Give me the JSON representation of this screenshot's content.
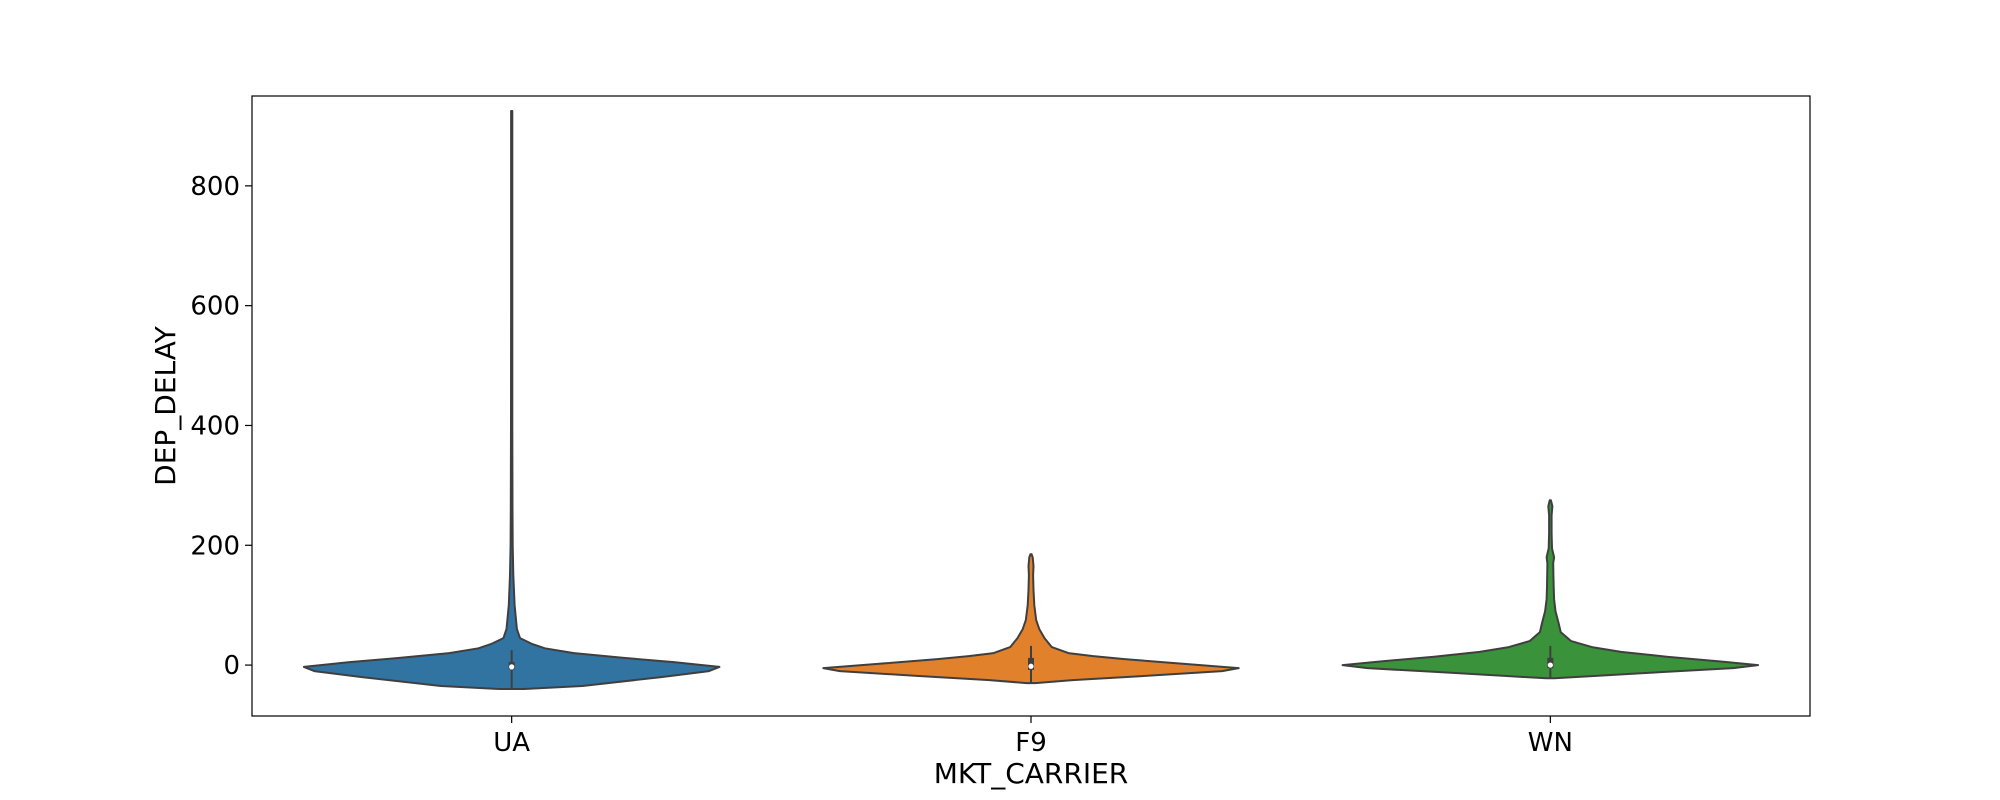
{
  "chart_data": {
    "type": "violin",
    "title": "",
    "xlabel": "MKT_CARRIER",
    "ylabel": "DEP_DELAY",
    "ylim": [
      -85,
      950
    ],
    "yticks": [
      0,
      200,
      400,
      600,
      800
    ],
    "grid": false,
    "legend": "none",
    "categories": [
      "UA",
      "F9",
      "WN"
    ],
    "series": [
      {
        "category": "UA",
        "color": "#3274a1",
        "min": -40,
        "max": 925,
        "q1": -7,
        "median": -3,
        "q3": 5,
        "density": [
          [
            -40,
            0.06
          ],
          [
            -35,
            0.34
          ],
          [
            -20,
            0.72
          ],
          [
            -10,
            0.95
          ],
          [
            -3,
            1.0
          ],
          [
            5,
            0.78
          ],
          [
            12,
            0.54
          ],
          [
            20,
            0.3
          ],
          [
            28,
            0.16
          ],
          [
            35,
            0.1
          ],
          [
            45,
            0.04
          ],
          [
            60,
            0.025
          ],
          [
            100,
            0.014
          ],
          [
            150,
            0.008
          ],
          [
            200,
            0.005
          ],
          [
            260,
            0.004
          ],
          [
            400,
            0.003
          ],
          [
            600,
            0.0025
          ],
          [
            800,
            0.0025
          ],
          [
            925,
            0.002
          ]
        ]
      },
      {
        "category": "F9",
        "color": "#e1812c",
        "min": -30,
        "max": 185,
        "q1": -8,
        "median": -2,
        "q3": 12,
        "density": [
          [
            -30,
            0.02
          ],
          [
            -25,
            0.2
          ],
          [
            -18,
            0.55
          ],
          [
            -10,
            0.92
          ],
          [
            -5,
            1.0
          ],
          [
            3,
            0.7
          ],
          [
            10,
            0.45
          ],
          [
            15,
            0.3
          ],
          [
            20,
            0.18
          ],
          [
            30,
            0.1
          ],
          [
            45,
            0.065
          ],
          [
            60,
            0.04
          ],
          [
            75,
            0.025
          ],
          [
            100,
            0.016
          ],
          [
            125,
            0.012
          ],
          [
            150,
            0.01
          ],
          [
            165,
            0.012
          ],
          [
            180,
            0.008
          ],
          [
            185,
            0.002
          ]
        ]
      },
      {
        "category": "WN",
        "color": "#3a923a",
        "min": -22,
        "max": 275,
        "q1": -5,
        "median": 0,
        "q3": 12,
        "density": [
          [
            -22,
            0.02
          ],
          [
            -18,
            0.22
          ],
          [
            -12,
            0.52
          ],
          [
            -5,
            0.88
          ],
          [
            0,
            1.0
          ],
          [
            6,
            0.82
          ],
          [
            14,
            0.56
          ],
          [
            22,
            0.34
          ],
          [
            30,
            0.2
          ],
          [
            40,
            0.1
          ],
          [
            55,
            0.05
          ],
          [
            70,
            0.04
          ],
          [
            90,
            0.025
          ],
          [
            110,
            0.018
          ],
          [
            130,
            0.016
          ],
          [
            150,
            0.015
          ],
          [
            170,
            0.014
          ],
          [
            180,
            0.018
          ],
          [
            195,
            0.008
          ],
          [
            220,
            0.006
          ],
          [
            250,
            0.006
          ],
          [
            265,
            0.01
          ],
          [
            275,
            0.002
          ]
        ]
      }
    ]
  }
}
